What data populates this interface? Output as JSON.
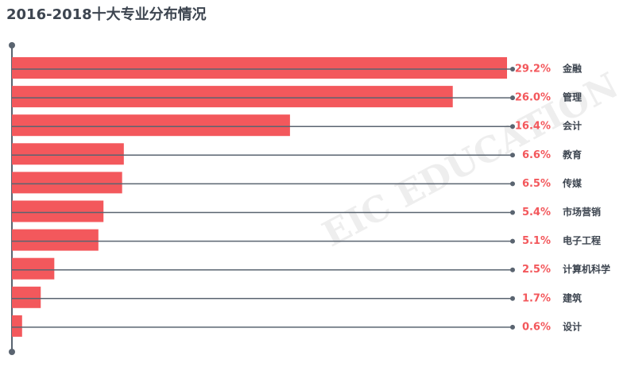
{
  "chart_data": {
    "type": "hbar",
    "title": "2016-2018十大专业分布情况",
    "categories": [
      "金融",
      "管理",
      "会计",
      "教育",
      "传媒",
      "市场营销",
      "电子工程",
      "计算机科学",
      "建筑",
      "设计"
    ],
    "values": [
      29.2,
      26.0,
      16.4,
      6.6,
      6.5,
      5.4,
      5.1,
      2.5,
      1.7,
      0.6
    ],
    "value_labels": [
      "29.2%",
      "26.0%",
      "16.4%",
      "6.6%",
      "6.5%",
      "5.4%",
      "5.1%",
      "2.5%",
      "1.7%",
      "0.6%"
    ],
    "color": "#f3585c",
    "watermark": "EIC EDUCATION"
  }
}
